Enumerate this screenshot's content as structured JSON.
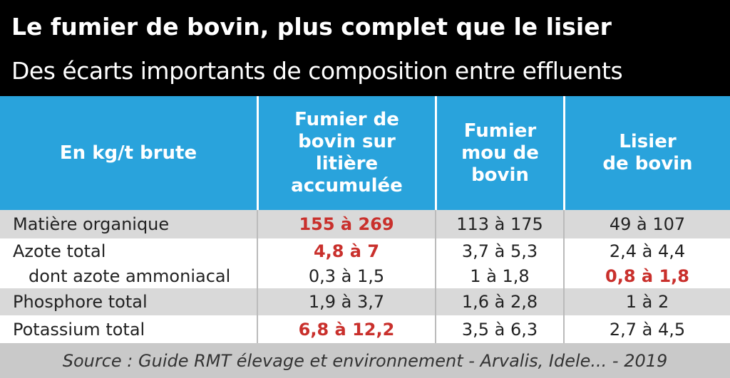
{
  "header": {
    "title": "Le fumier de bovin, plus complet que le lisier",
    "subtitle": "Des écarts importants de composition entre effluents"
  },
  "table": {
    "columns": [
      "En kg/t brute",
      "Fumier de\nbovin sur\nlitière\naccumulée",
      "Fumier\nmou de\nbovin",
      "Lisier\nde bovin"
    ],
    "highlight_color": "#c9302c",
    "rows": [
      {
        "label": "Matière organique",
        "values": [
          "155 à 269",
          "113 à 175",
          "49 à 107"
        ],
        "highlight": [
          0
        ],
        "shaded": true
      },
      {
        "label": "Azote total",
        "values": [
          "4,8 à 7",
          "3,7 à 5,3",
          "2,4 à 4,4"
        ],
        "highlight": [
          0
        ],
        "shaded": false
      },
      {
        "label": "dont azote ammoniacal",
        "values": [
          "0,3 à 1,5",
          "1 à 1,8",
          "0,8 à 1,8"
        ],
        "highlight": [
          2
        ],
        "shaded": false,
        "indent": true
      },
      {
        "label": "Phosphore total",
        "values": [
          "1,9 à 3,7",
          "1,6 à 2,8",
          "1 à 2"
        ],
        "highlight": [],
        "shaded": true
      },
      {
        "label": "Potassium total",
        "values": [
          "6,8 à 12,2",
          "3,5 à 6,3",
          "2,7 à 4,5"
        ],
        "highlight": [
          0
        ],
        "shaded": false
      }
    ]
  },
  "footer": {
    "source": "Source : Guide RMT élevage et environnement - Arvalis, Idele... - 2019"
  }
}
